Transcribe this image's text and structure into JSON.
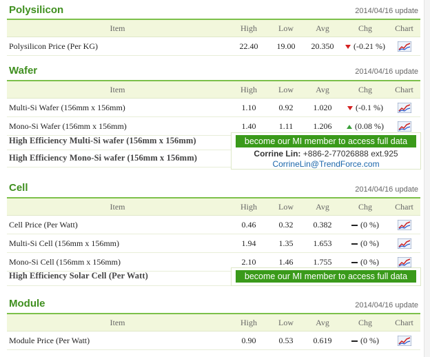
{
  "headers": {
    "item": "Item",
    "high": "High",
    "low": "Low",
    "avg": "Avg",
    "chg": "Chg",
    "chart": "Chart"
  },
  "colors": {
    "accent": "#3f8f1f",
    "header_bg": "#f2f7dc",
    "up": "#3aa03a",
    "down": "#d42020",
    "button": "#3a9a1a",
    "link": "#1a66aa"
  },
  "icons": {
    "chart": "chart-icon",
    "down": "down-arrow-icon",
    "up": "up-arrow-icon",
    "flat": "flat-dash-icon"
  },
  "polysilicon": {
    "title": "Polysilicon",
    "update": "2014/04/16 update",
    "rows": [
      {
        "item": "Polysilicon Price (Per KG)",
        "high": "22.40",
        "low": "19.00",
        "avg": "20.350",
        "chg": "(-0.21 %)",
        "dir": "down"
      }
    ]
  },
  "wafer": {
    "title": "Wafer",
    "update": "2014/04/16 update",
    "rows": [
      {
        "item": "Multi-Si Wafer (156mm x 156mm)",
        "high": "1.10",
        "low": "0.92",
        "avg": "1.020",
        "chg": "(-0.1 %)",
        "dir": "down"
      },
      {
        "item": "Mono-Si Wafer (156mm x 156mm)",
        "high": "1.40",
        "low": "1.11",
        "avg": "1.206",
        "chg": "(0.08 %)",
        "dir": "up"
      }
    ],
    "he_items": [
      "High Efficiency Multi-Si wafer (156mm x 156mm)",
      "High Efficiency Mono-Si wafer (156mm x 156mm)"
    ],
    "member_btn": "become our MI member to access full data",
    "contact_name": "Corrine Lin:",
    "contact_phone": "+886-2-77026888",
    "contact_ext": "ext.925",
    "contact_email": "CorrineLin@TrendForce.com"
  },
  "cell": {
    "title": "Cell",
    "update": "2014/04/16 update",
    "rows": [
      {
        "item": "Cell Price (Per Watt)",
        "high": "0.46",
        "low": "0.32",
        "avg": "0.382",
        "chg": "(0 %)",
        "dir": "flat"
      },
      {
        "item": "Multi-Si Cell (156mm x 156mm)",
        "high": "1.94",
        "low": "1.35",
        "avg": "1.653",
        "chg": "(0 %)",
        "dir": "flat"
      },
      {
        "item": "Mono-Si Cell (156mm x 156mm)",
        "high": "2.10",
        "low": "1.46",
        "avg": "1.755",
        "chg": "(0 %)",
        "dir": "flat"
      }
    ],
    "he_item": "High Efficiency Solar Cell (Per Watt)",
    "member_btn": "become our MI member to access full data"
  },
  "module": {
    "title": "Module",
    "update": "2014/04/16 update",
    "rows": [
      {
        "item": "Module Price (Per Watt)",
        "high": "0.90",
        "low": "0.53",
        "avg": "0.619",
        "chg": "(0 %)",
        "dir": "flat"
      }
    ]
  }
}
